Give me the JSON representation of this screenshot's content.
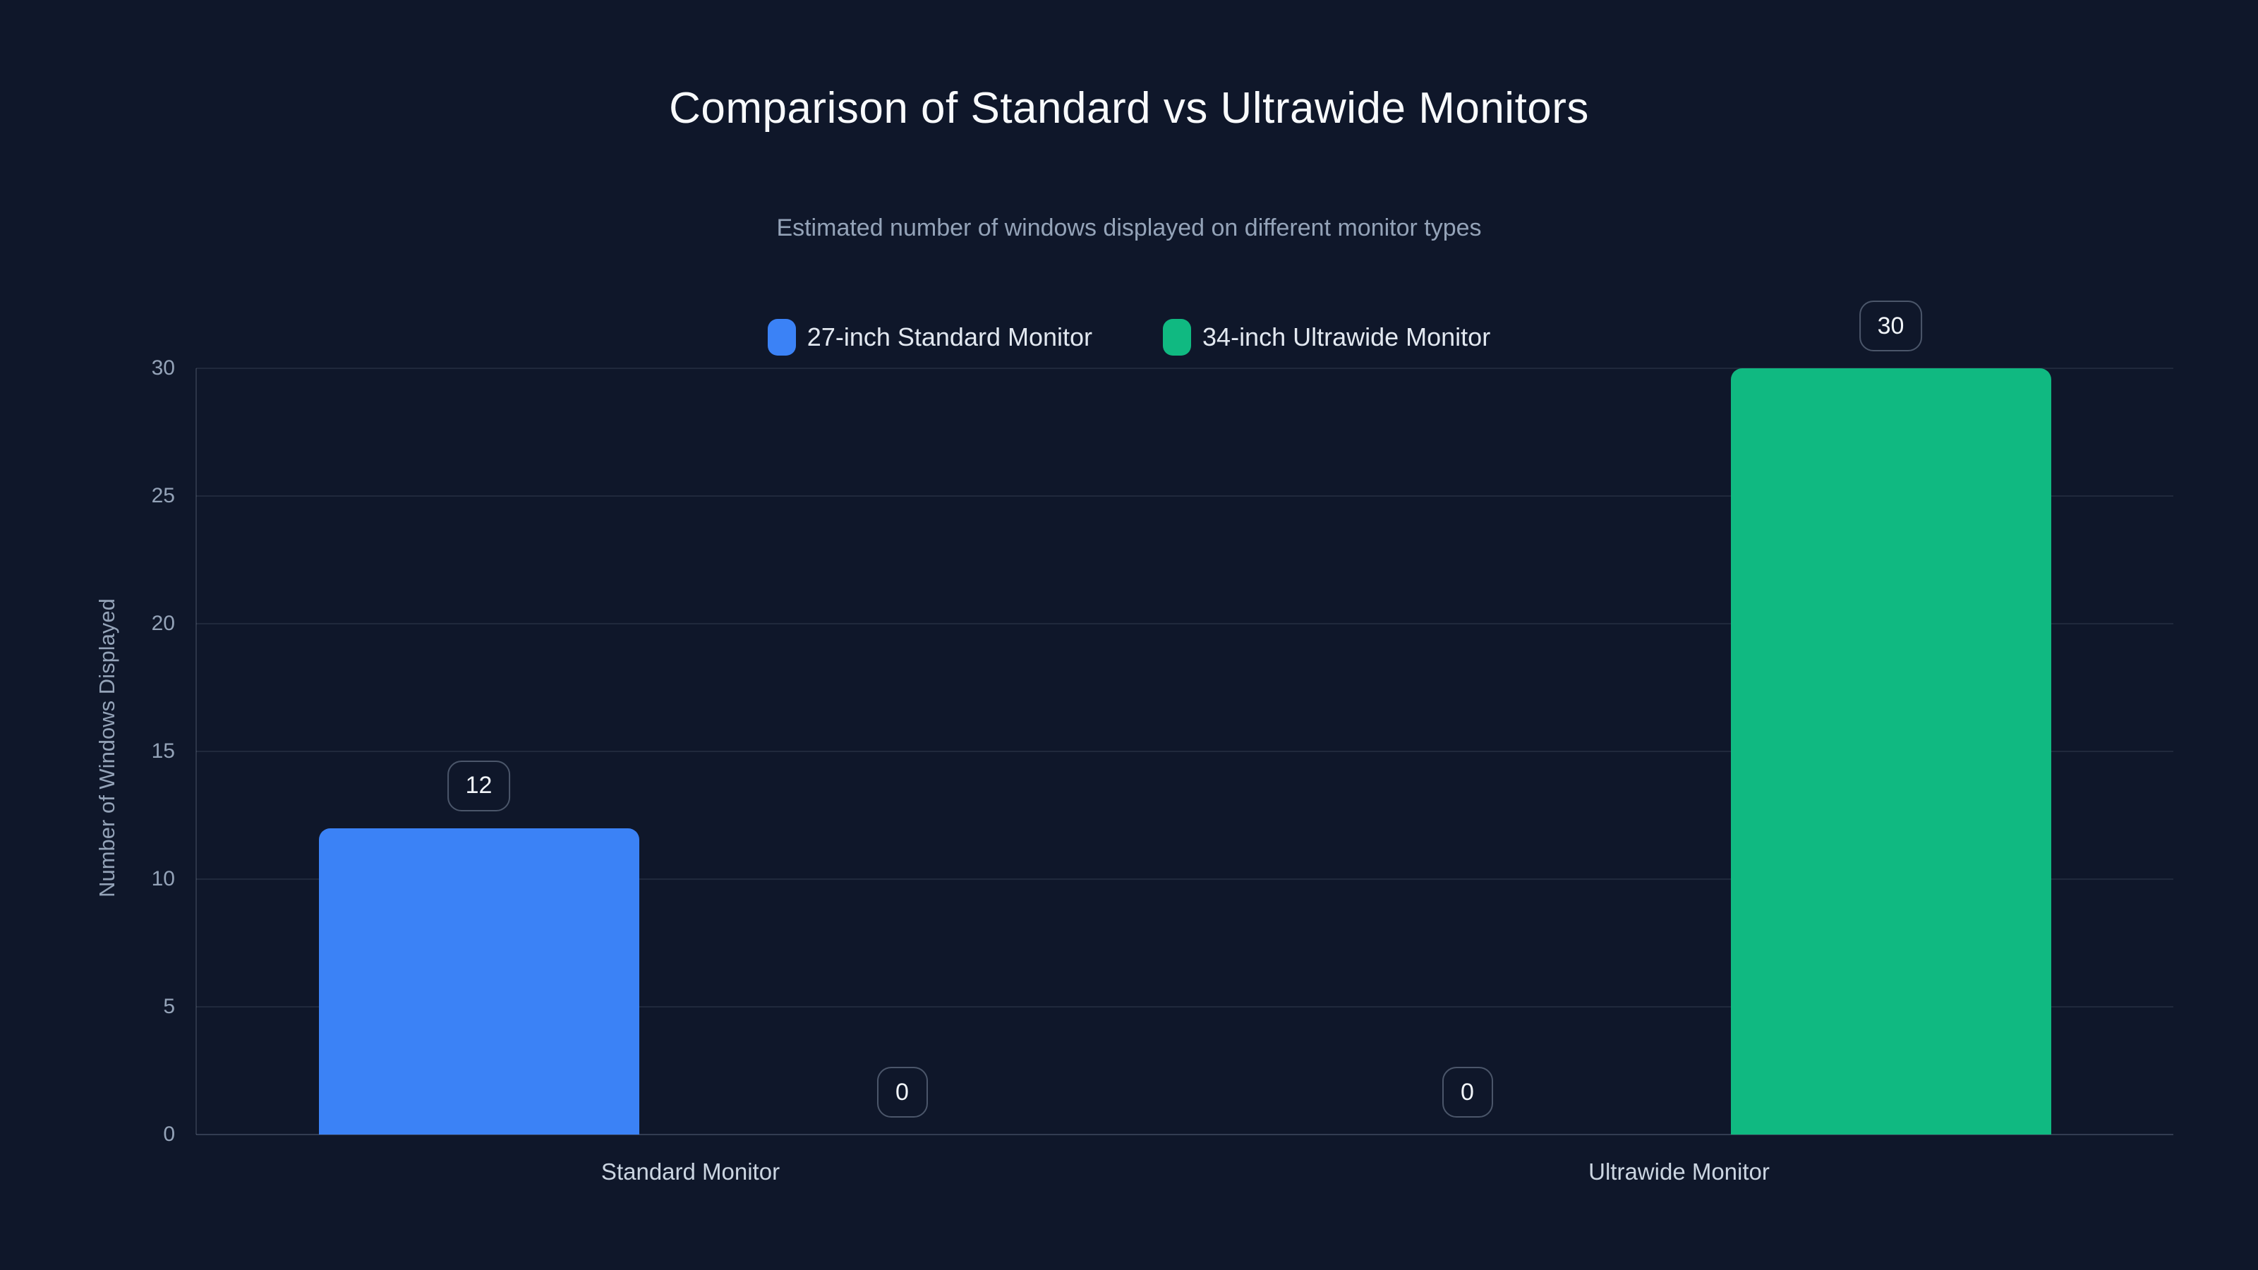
{
  "chart_data": {
    "type": "bar",
    "title": "Comparison of Standard vs Ultrawide Monitors",
    "subtitle": "Estimated number of windows displayed on different monitor types",
    "categories": [
      "Standard Monitor",
      "Ultrawide Monitor"
    ],
    "series": [
      {
        "name": "27-inch Standard Monitor",
        "color": "#3b82f6",
        "values": [
          12,
          0
        ]
      },
      {
        "name": "34-inch Ultrawide Monitor",
        "color": "#10b981",
        "values": [
          0,
          30
        ]
      }
    ],
    "value_labels_shown": [
      "12",
      "0",
      "0",
      "30"
    ],
    "xlabel": "",
    "ylabel": "Number of Windows Displayed",
    "yticks": [
      0,
      5,
      10,
      15,
      20,
      25,
      30
    ],
    "ylim": [
      0,
      30
    ],
    "grid": true,
    "legend_position": "top-center",
    "colors": {
      "background": "#0f172a",
      "title_text": "#f8fafc",
      "subtitle_text": "#94a3b8",
      "axis_text": "#94a3b8",
      "category_text": "#cbd5e1",
      "series_blue": "#3b82f6",
      "series_green": "#10b981"
    }
  }
}
